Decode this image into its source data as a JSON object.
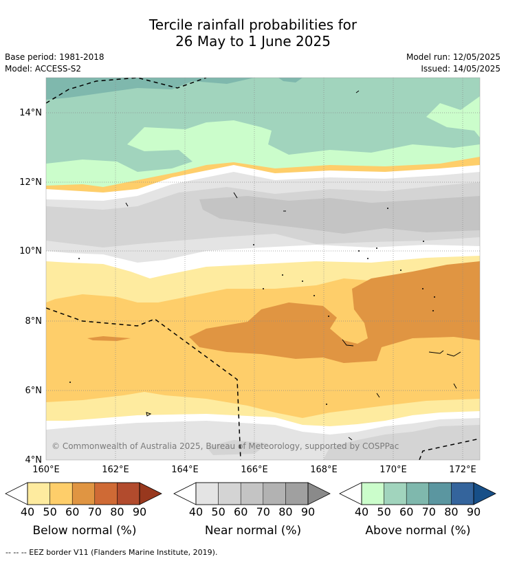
{
  "header": {
    "title_line1": "Tercile rainfall probabilities for",
    "title_line2": "26 May to 1 June 2025",
    "base_period": "Base period: 1981-2018",
    "model": "Model: ACCESS-S2",
    "model_run": "Model run: 12/05/2025",
    "issued": "Issued: 14/05/2025"
  },
  "map": {
    "latitudes": [
      "14°N",
      "12°N",
      "10°N",
      "8°N",
      "6°N",
      "4°N"
    ],
    "longitudes": [
      "160°E",
      "162°E",
      "164°E",
      "166°E",
      "168°E",
      "170°E",
      "172°E"
    ],
    "copyright": "© Commonwealth of Australia 2025, Bureau of Meteorology, supported by COSPPac"
  },
  "colorbars": [
    {
      "title": "Below normal (%)",
      "ticks": [
        "40",
        "50",
        "60",
        "70",
        "80",
        "90"
      ],
      "colors": [
        "#ffffff",
        "#feeb9f",
        "#fece6a",
        "#e09542",
        "#cf6a35",
        "#b24b2d",
        "#98381e"
      ]
    },
    {
      "title": "Near normal (%)",
      "ticks": [
        "40",
        "50",
        "60",
        "70",
        "80",
        "90"
      ],
      "colors": [
        "#ffffff",
        "#e4e4e4",
        "#d4d4d4",
        "#c4c4c4",
        "#b2b2b2",
        "#a0a0a0",
        "#8a8a8a"
      ]
    },
    {
      "title": "Above normal (%)",
      "ticks": [
        "40",
        "50",
        "60",
        "70",
        "80",
        "90"
      ],
      "colors": [
        "#ffffff",
        "#cbfdcb",
        "#a1d4bd",
        "#7fb8ad",
        "#5b96a0",
        "#34649c",
        "#174f88"
      ]
    }
  ],
  "footer": {
    "legend": "-- -- -- EEZ border V11 (Flanders Marine Institute, 2019)."
  }
}
